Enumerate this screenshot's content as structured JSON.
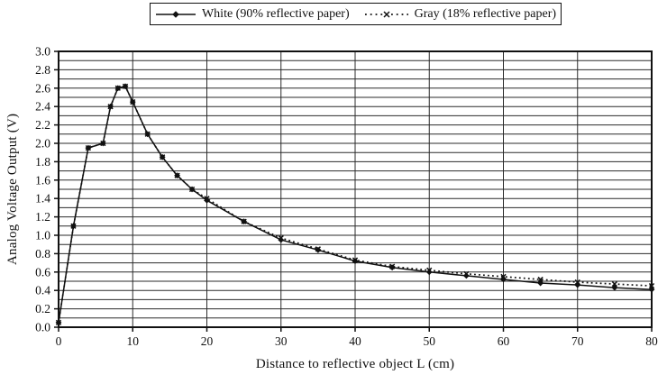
{
  "figure": {
    "background": "#ffffff",
    "ink_color": "#111111",
    "grid_color": "#2b2b2b"
  },
  "chart_data": {
    "type": "line",
    "title": "",
    "xlabel": "Distance to reflective object L (cm)",
    "ylabel": "Analog Voltage Output (V)",
    "xlim": [
      0,
      80
    ],
    "ylim": [
      0,
      3.0
    ],
    "x_major_ticks": [
      "0",
      "10",
      "20",
      "30",
      "40",
      "50",
      "60",
      "70",
      "80"
    ],
    "y_major_ticks": [
      "0.0",
      "0.2",
      "0.4",
      "0.6",
      "0.8",
      "1.0",
      "1.2",
      "1.4",
      "1.6",
      "1.8",
      "2.0",
      "2.2",
      "2.4",
      "2.6",
      "2.8",
      "3.0"
    ],
    "x_grid_step": 10,
    "y_grid_step": 0.1,
    "grid": true,
    "legend_position": "top-center",
    "axis_color": "#111111",
    "grid_color": "#2b2b2b",
    "series": [
      {
        "name": "White (90% reflective paper)",
        "line": "solid",
        "marker": "diamond",
        "color": "#111111",
        "points": [
          [
            0,
            0.05
          ],
          [
            2,
            1.1
          ],
          [
            4,
            1.95
          ],
          [
            6,
            2.0
          ],
          [
            7,
            2.4
          ],
          [
            8,
            2.6
          ],
          [
            9,
            2.62
          ],
          [
            10,
            2.45
          ],
          [
            12,
            2.1
          ],
          [
            14,
            1.85
          ],
          [
            16,
            1.65
          ],
          [
            18,
            1.5
          ],
          [
            20,
            1.38
          ],
          [
            25,
            1.15
          ],
          [
            30,
            0.95
          ],
          [
            35,
            0.84
          ],
          [
            40,
            0.72
          ],
          [
            45,
            0.65
          ],
          [
            50,
            0.6
          ],
          [
            55,
            0.56
          ],
          [
            60,
            0.52
          ],
          [
            65,
            0.48
          ],
          [
            70,
            0.46
          ],
          [
            75,
            0.43
          ],
          [
            80,
            0.41
          ]
        ]
      },
      {
        "name": "Gray (18% reflective paper)",
        "line": "dotted",
        "marker": "x",
        "color": "#111111",
        "points": [
          [
            0,
            0.05
          ],
          [
            2,
            1.1
          ],
          [
            4,
            1.95
          ],
          [
            6,
            2.0
          ],
          [
            7,
            2.4
          ],
          [
            8,
            2.6
          ],
          [
            9,
            2.62
          ],
          [
            10,
            2.45
          ],
          [
            12,
            2.1
          ],
          [
            14,
            1.85
          ],
          [
            16,
            1.65
          ],
          [
            18,
            1.5
          ],
          [
            20,
            1.4
          ],
          [
            25,
            1.15
          ],
          [
            30,
            0.97
          ],
          [
            35,
            0.85
          ],
          [
            40,
            0.73
          ],
          [
            45,
            0.66
          ],
          [
            50,
            0.62
          ],
          [
            55,
            0.58
          ],
          [
            60,
            0.55
          ],
          [
            65,
            0.52
          ],
          [
            70,
            0.49
          ],
          [
            75,
            0.47
          ],
          [
            80,
            0.45
          ]
        ]
      }
    ]
  }
}
